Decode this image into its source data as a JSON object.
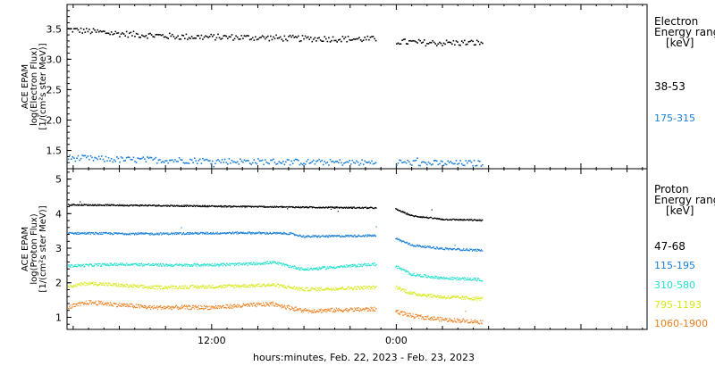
{
  "xlabel": "hours:minutes, Feb. 22, 2023 - Feb. 23, 2023",
  "x_ticks": [
    {
      "label": "12:00",
      "hours": 12
    },
    {
      "label": "0:00",
      "hours": 24
    }
  ],
  "x_range_hours": [
    2.6,
    40.3
  ],
  "gap_hours": [
    22.7,
    23.9
  ],
  "data_end_hours": 29.6,
  "colors": {
    "black": "#000000",
    "blue": "#1a7fd6",
    "cyan": "#22e0cc",
    "yellow": "#d6e81a",
    "orange": "#ee7f1e"
  },
  "chart_data": [
    {
      "type": "scatter",
      "instrument": "ACE EPAM",
      "ylabel_lines": [
        "ACE EPAM",
        "log(Electron Flux)",
        "[1/(cm²s ster MeV)]"
      ],
      "yticks": [
        "1.5",
        "2.0",
        "2.5",
        "3.0",
        "3.5"
      ],
      "ylim": [
        1.2,
        3.9
      ],
      "legend_title": [
        "Electron",
        "Energy range",
        "[keV]"
      ],
      "series": [
        {
          "name": "38-53",
          "color": "#000000",
          "x_hours": [
            2.6,
            6,
            10,
            14,
            18,
            22.5,
            23.9,
            26,
            29.6
          ],
          "y": [
            3.5,
            3.43,
            3.38,
            3.37,
            3.35,
            3.34,
            3.3,
            3.28,
            3.28
          ],
          "jitter": 0.05
        },
        {
          "name": "175-315",
          "color": "#1a7fd6",
          "x_hours": [
            2.6,
            6,
            10,
            14,
            18,
            22.5,
            23.9,
            26,
            29.6
          ],
          "y": [
            1.39,
            1.36,
            1.35,
            1.33,
            1.32,
            1.31,
            1.32,
            1.3,
            1.3
          ],
          "jitter": 0.05
        }
      ]
    },
    {
      "type": "scatter",
      "instrument": "ACE EPAM",
      "ylabel_lines": [
        "ACE EPAM",
        "log(Proton Flux)",
        "[1/(cm²s ster MeV)]"
      ],
      "yticks": [
        "1",
        "2",
        "3",
        "4",
        "5"
      ],
      "ylim": [
        0.65,
        5.3
      ],
      "legend_title": [
        "Proton",
        "Energy range",
        "[keV]"
      ],
      "series": [
        {
          "name": "47-68",
          "color": "#000000",
          "x_hours": [
            2.6,
            8,
            14,
            18,
            22.5,
            23.9,
            25,
            27,
            29.6
          ],
          "y": [
            4.27,
            4.25,
            4.22,
            4.2,
            4.18,
            4.15,
            3.95,
            3.85,
            3.82
          ],
          "jitter": 0.02
        },
        {
          "name": "115-195",
          "color": "#1a7fd6",
          "x_hours": [
            2.6,
            8,
            14,
            17,
            18,
            22.5,
            23.9,
            25,
            27,
            29.6
          ],
          "y": [
            3.45,
            3.43,
            3.46,
            3.44,
            3.35,
            3.38,
            3.3,
            3.1,
            3.0,
            2.95
          ],
          "jitter": 0.03
        },
        {
          "name": "310-580",
          "color": "#22e0cc",
          "x_hours": [
            2.6,
            6,
            10,
            14,
            16,
            18,
            22.5,
            23.9,
            25,
            27,
            29.6
          ],
          "y": [
            2.5,
            2.55,
            2.52,
            2.55,
            2.6,
            2.4,
            2.55,
            2.5,
            2.25,
            2.15,
            2.1
          ],
          "jitter": 0.04
        },
        {
          "name": "795-1193",
          "color": "#d6e81a",
          "x_hours": [
            2.6,
            4,
            8,
            12,
            16,
            18,
            22.5,
            23.9,
            25,
            27,
            29.6
          ],
          "y": [
            1.9,
            2.0,
            1.88,
            1.9,
            1.95,
            1.82,
            1.88,
            1.9,
            1.7,
            1.6,
            1.55
          ],
          "jitter": 0.05
        },
        {
          "name": "1060-1900",
          "color": "#ee7f1e",
          "x_hours": [
            2.6,
            4,
            8,
            12,
            16,
            18,
            22.5,
            23.9,
            25,
            27,
            29.6
          ],
          "y": [
            1.3,
            1.45,
            1.3,
            1.3,
            1.4,
            1.2,
            1.25,
            1.2,
            1.05,
            0.95,
            0.88
          ],
          "jitter": 0.06
        }
      ]
    }
  ]
}
